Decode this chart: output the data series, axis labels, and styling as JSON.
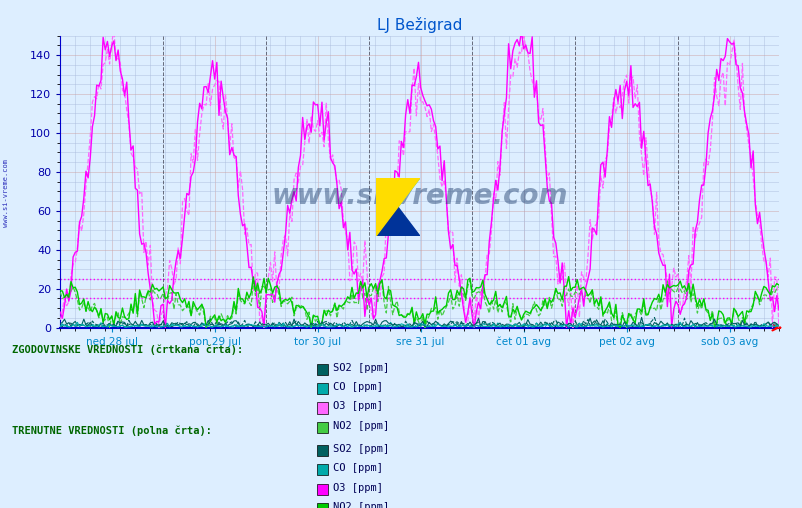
{
  "title": "LJ Bežigrad",
  "title_color": "#0055cc",
  "bg_color": "#ddeeff",
  "plot_bg_color": "#ddeeff",
  "x_label_color": "#0088cc",
  "y_label_color": "#0000aa",
  "grid_color_major": "#cc9999",
  "grid_color_minor": "#aabbdd",
  "ylim": [
    0,
    150
  ],
  "yticks": [
    0,
    20,
    40,
    60,
    80,
    100,
    120,
    140
  ],
  "x_days": [
    "ned 28 jul",
    "pon 29 jul",
    "tor 30 jul",
    "sre 31 jul",
    "čet 01 avg",
    "pet 02 avg",
    "sob 03 avg"
  ],
  "hline1": 25,
  "hline2": 15,
  "hline_color": "#ff00ff",
  "so2_color": "#006060",
  "co_color": "#00aaaa",
  "o3_color_solid": "#ff00ff",
  "o3_color_dashed": "#ff66ff",
  "no2_color_solid": "#00cc00",
  "no2_color_dashed": "#44cc44",
  "watermark_text": "www.si-vreme.com",
  "watermark_color": "#1a3a6a",
  "watermark_alpha": 0.45,
  "sidebar_color": "#0000aa",
  "bottom_label1": "ZGODOVINSKE VREDNOSTI (črtkana črta):",
  "bottom_label2": "TRENUTNE VREDNOSTI (polna črta):",
  "bottom_label_color": "#006600",
  "legend_items": [
    "SO2 [ppm]",
    "CO [ppm]",
    "O3 [ppm]",
    "NO2 [ppm]"
  ],
  "legend_colors_hist": [
    "#006060",
    "#00aaaa",
    "#ff66ff",
    "#44cc44"
  ],
  "legend_colors_curr": [
    "#006060",
    "#00aaaa",
    "#ff00ff",
    "#00cc00"
  ],
  "n_points": 336
}
